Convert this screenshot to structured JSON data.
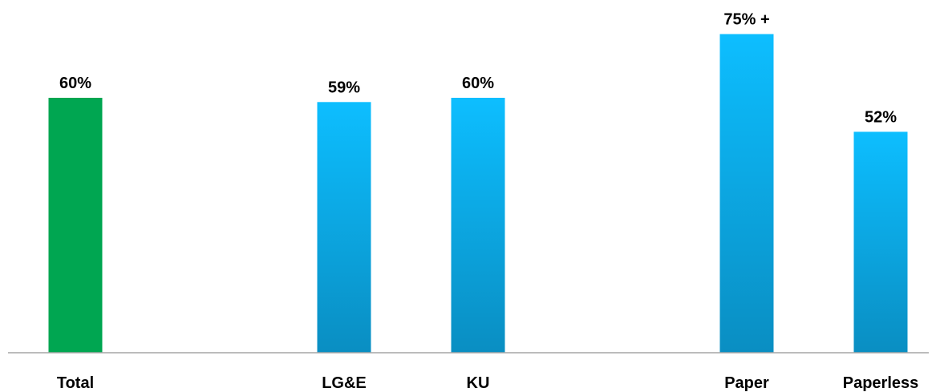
{
  "chart_data": {
    "type": "bar",
    "categories": [
      "Total",
      "LG&E",
      "KU",
      "Paper",
      "Paperless"
    ],
    "values": [
      60,
      59,
      60,
      75,
      52
    ],
    "data_labels": [
      "60%",
      "59%",
      "60%",
      "75% +",
      "52%"
    ],
    "bar_colors": [
      "green",
      "blue-gradient",
      "blue-gradient",
      "blue-gradient",
      "blue-gradient"
    ],
    "colors": {
      "green": "#00a651",
      "blue_top": "#0dbeff",
      "blue_bottom": "#0a8ec2",
      "axis": "#a6a6a6"
    },
    "title": "",
    "xlabel": "",
    "ylabel": "",
    "ylim": [
      0,
      80
    ],
    "grid": false,
    "legend": "none"
  }
}
